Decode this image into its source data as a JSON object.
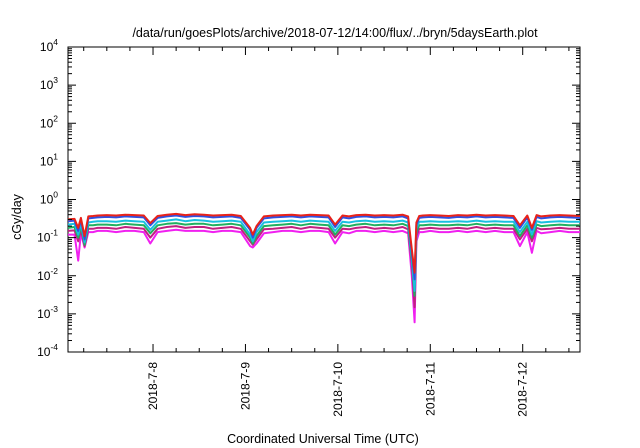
{
  "chart_data": {
    "type": "line",
    "title": "/data/run/goesPlots/archive/2018-07-12/14:00/flux/../bryn/5daysEarth.plot",
    "xlabel": "Coordinated Universal Time (UTC)",
    "ylabel": "cGy/day",
    "yscale": "log",
    "ylim": [
      0.0001,
      10000
    ],
    "ytick_exponents": [
      -4,
      -3,
      -2,
      -1,
      0,
      1,
      2,
      3,
      4
    ],
    "ytick_base": "10",
    "xlim": [
      7.08,
      12.62
    ],
    "xticks": [
      {
        "value": 8,
        "label": "2018-7-8"
      },
      {
        "value": 9,
        "label": "2018-7-9"
      },
      {
        "value": 10,
        "label": "2018-7-10"
      },
      {
        "value": 11,
        "label": "2018-7-11"
      },
      {
        "value": 12,
        "label": "2018-7-12"
      }
    ],
    "grid": false,
    "legend": "none",
    "x": [
      7.08,
      7.15,
      7.19,
      7.22,
      7.26,
      7.3,
      7.35,
      7.4,
      7.5,
      7.6,
      7.7,
      7.8,
      7.9,
      7.97,
      8.05,
      8.15,
      8.25,
      8.35,
      8.45,
      8.55,
      8.65,
      8.75,
      8.85,
      8.95,
      9.05,
      9.08,
      9.12,
      9.2,
      9.3,
      9.4,
      9.5,
      9.6,
      9.7,
      9.8,
      9.9,
      9.97,
      10.05,
      10.12,
      10.2,
      10.3,
      10.4,
      10.5,
      10.6,
      10.7,
      10.76,
      10.8,
      10.83,
      10.85,
      10.88,
      10.92,
      11.0,
      11.1,
      11.2,
      11.3,
      11.4,
      11.5,
      11.6,
      11.7,
      11.8,
      11.9,
      11.97,
      12.05,
      12.1,
      12.15,
      12.2,
      12.3,
      12.4,
      12.5,
      12.62
    ],
    "series": [
      {
        "color": "#e8221a",
        "values": [
          0.3,
          0.31,
          0.18,
          0.33,
          0.11,
          0.36,
          0.37,
          0.38,
          0.39,
          0.38,
          0.4,
          0.39,
          0.38,
          0.24,
          0.37,
          0.4,
          0.42,
          0.39,
          0.41,
          0.4,
          0.38,
          0.39,
          0.4,
          0.37,
          0.18,
          0.12,
          0.2,
          0.36,
          0.38,
          0.39,
          0.4,
          0.38,
          0.4,
          0.39,
          0.38,
          0.22,
          0.38,
          0.36,
          0.39,
          0.4,
          0.38,
          0.39,
          0.38,
          0.4,
          0.36,
          0.05,
          0.012,
          0.25,
          0.37,
          0.38,
          0.39,
          0.38,
          0.37,
          0.39,
          0.38,
          0.4,
          0.38,
          0.39,
          0.38,
          0.37,
          0.21,
          0.38,
          0.18,
          0.39,
          0.36,
          0.38,
          0.39,
          0.38,
          0.37
        ]
      },
      {
        "color": "#3050e0",
        "values": [
          0.27,
          0.28,
          0.15,
          0.3,
          0.09,
          0.32,
          0.33,
          0.34,
          0.35,
          0.34,
          0.36,
          0.35,
          0.34,
          0.21,
          0.33,
          0.36,
          0.38,
          0.35,
          0.37,
          0.36,
          0.34,
          0.35,
          0.36,
          0.33,
          0.16,
          0.1,
          0.18,
          0.32,
          0.34,
          0.35,
          0.36,
          0.34,
          0.36,
          0.35,
          0.34,
          0.19,
          0.34,
          0.32,
          0.35,
          0.36,
          0.34,
          0.35,
          0.34,
          0.36,
          0.32,
          0.04,
          0.008,
          0.22,
          0.33,
          0.34,
          0.35,
          0.34,
          0.33,
          0.35,
          0.34,
          0.36,
          0.34,
          0.35,
          0.34,
          0.33,
          0.18,
          0.34,
          0.16,
          0.35,
          0.32,
          0.34,
          0.35,
          0.34,
          0.33
        ]
      },
      {
        "color": "#18c0e0",
        "values": [
          0.22,
          0.23,
          0.12,
          0.24,
          0.075,
          0.25,
          0.26,
          0.27,
          0.27,
          0.26,
          0.28,
          0.27,
          0.26,
          0.16,
          0.26,
          0.28,
          0.3,
          0.27,
          0.29,
          0.28,
          0.26,
          0.27,
          0.28,
          0.26,
          0.12,
          0.08,
          0.14,
          0.25,
          0.26,
          0.27,
          0.28,
          0.26,
          0.28,
          0.27,
          0.26,
          0.15,
          0.26,
          0.25,
          0.27,
          0.28,
          0.26,
          0.27,
          0.26,
          0.28,
          0.25,
          0.03,
          0.004,
          0.17,
          0.26,
          0.26,
          0.27,
          0.26,
          0.26,
          0.27,
          0.26,
          0.28,
          0.26,
          0.27,
          0.26,
          0.26,
          0.14,
          0.26,
          0.12,
          0.27,
          0.25,
          0.26,
          0.27,
          0.26,
          0.26
        ]
      },
      {
        "color": "#20b060",
        "values": [
          0.18,
          0.19,
          0.1,
          0.2,
          0.065,
          0.21,
          0.21,
          0.22,
          0.22,
          0.21,
          0.23,
          0.22,
          0.21,
          0.13,
          0.21,
          0.23,
          0.24,
          0.22,
          0.23,
          0.23,
          0.21,
          0.22,
          0.23,
          0.21,
          0.1,
          0.07,
          0.11,
          0.2,
          0.21,
          0.22,
          0.23,
          0.21,
          0.23,
          0.22,
          0.21,
          0.12,
          0.21,
          0.2,
          0.22,
          0.23,
          0.21,
          0.22,
          0.21,
          0.23,
          0.2,
          0.025,
          0.003,
          0.14,
          0.21,
          0.21,
          0.22,
          0.21,
          0.21,
          0.22,
          0.21,
          0.23,
          0.21,
          0.22,
          0.21,
          0.21,
          0.11,
          0.21,
          0.1,
          0.22,
          0.2,
          0.21,
          0.22,
          0.21,
          0.21
        ]
      },
      {
        "color": "#c02080",
        "values": [
          0.15,
          0.155,
          0.08,
          0.16,
          0.06,
          0.17,
          0.17,
          0.18,
          0.18,
          0.17,
          0.19,
          0.18,
          0.17,
          0.1,
          0.17,
          0.19,
          0.2,
          0.18,
          0.19,
          0.19,
          0.17,
          0.18,
          0.19,
          0.17,
          0.08,
          0.065,
          0.09,
          0.165,
          0.17,
          0.18,
          0.19,
          0.17,
          0.19,
          0.18,
          0.17,
          0.1,
          0.17,
          0.165,
          0.18,
          0.19,
          0.17,
          0.18,
          0.17,
          0.19,
          0.165,
          0.02,
          0.0015,
          0.11,
          0.17,
          0.17,
          0.18,
          0.17,
          0.17,
          0.18,
          0.17,
          0.19,
          0.17,
          0.18,
          0.17,
          0.17,
          0.09,
          0.17,
          0.08,
          0.18,
          0.165,
          0.17,
          0.18,
          0.17,
          0.17
        ]
      },
      {
        "color": "#f020f0",
        "values": [
          0.12,
          0.12,
          0.025,
          0.13,
          0.055,
          0.14,
          0.14,
          0.15,
          0.15,
          0.14,
          0.15,
          0.15,
          0.14,
          0.07,
          0.14,
          0.15,
          0.16,
          0.15,
          0.15,
          0.15,
          0.14,
          0.15,
          0.15,
          0.14,
          0.06,
          0.055,
          0.07,
          0.13,
          0.14,
          0.15,
          0.15,
          0.14,
          0.15,
          0.15,
          0.14,
          0.07,
          0.14,
          0.13,
          0.15,
          0.15,
          0.14,
          0.15,
          0.14,
          0.15,
          0.13,
          0.01,
          0.0006,
          0.08,
          0.14,
          0.14,
          0.15,
          0.14,
          0.14,
          0.15,
          0.14,
          0.15,
          0.14,
          0.15,
          0.14,
          0.14,
          0.06,
          0.14,
          0.04,
          0.15,
          0.13,
          0.14,
          0.15,
          0.14,
          0.14
        ]
      }
    ]
  }
}
